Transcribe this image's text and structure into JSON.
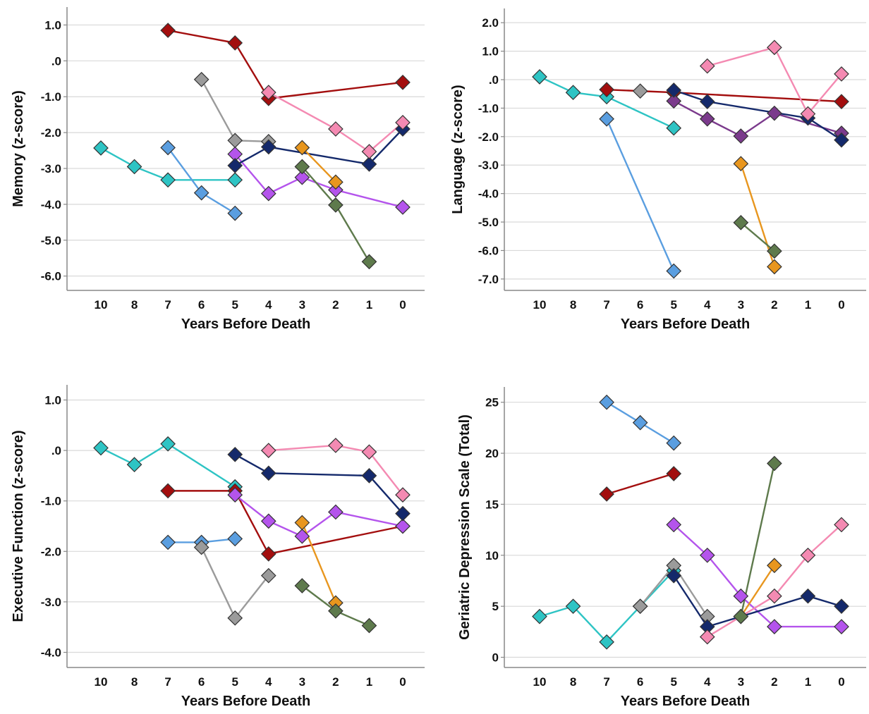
{
  "figure": {
    "background": "#ffffff",
    "gridline_color": "#d9d9d9",
    "axis_color": "#888888",
    "marker_edge": "#333333"
  },
  "chart_data": [
    {
      "type": "line",
      "xlabel": "Years Before Death",
      "ylabel": "Memory (z-score)",
      "categories": [
        "10",
        "8",
        "7",
        "6",
        "5",
        "4",
        "3",
        "2",
        "1",
        "0"
      ],
      "ylim": [
        -6.4,
        1.5
      ],
      "yticks": [
        1.0,
        0.0,
        -1.0,
        -2.0,
        -3.0,
        -4.0,
        -5.0,
        -6.0
      ],
      "ytick_labels": [
        "1.0",
        ".0",
        "-1.0",
        "-2.0",
        "-3.0",
        "-4.0",
        "-5.0",
        "-6.0"
      ],
      "grid": true,
      "series": [
        {
          "color": "#2ec4c4",
          "points": [
            [
              "10",
              -2.43
            ],
            [
              "8",
              -2.95
            ],
            [
              "7",
              -3.32
            ],
            [
              "5",
              -3.32
            ]
          ]
        },
        {
          "color": "#5a9ee0",
          "points": [
            [
              "7",
              -2.42
            ],
            [
              "6",
              -3.68
            ],
            [
              "5",
              -4.25
            ]
          ]
        },
        {
          "color": "#a30e0e",
          "points": [
            [
              "7",
              0.85
            ],
            [
              "5",
              0.5
            ],
            [
              "4",
              -1.05
            ],
            [
              "0",
              -0.6
            ]
          ]
        },
        {
          "color": "#9b9b9b",
          "points": [
            [
              "6",
              -0.52
            ],
            [
              "5",
              -2.22
            ],
            [
              "4",
              -2.25
            ]
          ]
        },
        {
          "color": "#b454ec",
          "points": [
            [
              "5",
              -2.6
            ],
            [
              "4",
              -3.7
            ],
            [
              "3",
              -3.25
            ],
            [
              "2",
              -3.6
            ],
            [
              "0",
              -4.08
            ]
          ]
        },
        {
          "color": "#14296b",
          "points": [
            [
              "5",
              -2.92
            ],
            [
              "4",
              -2.4
            ],
            [
              "1",
              -2.88
            ],
            [
              "0",
              -1.9
            ]
          ]
        },
        {
          "color": "#f48ab2",
          "points": [
            [
              "4",
              -0.88
            ],
            [
              "2",
              -1.9
            ],
            [
              "1",
              -2.53
            ],
            [
              "0",
              -1.72
            ]
          ]
        },
        {
          "color": "#e8961e",
          "points": [
            [
              "3",
              -2.42
            ],
            [
              "2",
              -3.38
            ]
          ]
        },
        {
          "color": "#5e7a4c",
          "points": [
            [
              "3",
              -2.95
            ],
            [
              "2",
              -4.02
            ],
            [
              "1",
              -5.6
            ]
          ]
        }
      ]
    },
    {
      "type": "line",
      "xlabel": "Years Before Death",
      "ylabel": "Language (z-score)",
      "categories": [
        "10",
        "8",
        "7",
        "6",
        "5",
        "4",
        "3",
        "2",
        "1",
        "0"
      ],
      "ylim": [
        -7.4,
        2.5
      ],
      "yticks": [
        2.0,
        1.0,
        0.0,
        -1.0,
        -2.0,
        -3.0,
        -4.0,
        -5.0,
        -6.0,
        -7.0
      ],
      "ytick_labels": [
        "2.0",
        "1.0",
        ".0",
        "-1.0",
        "-2.0",
        "-3.0",
        "-4.0",
        "-5.0",
        "-6.0",
        "-7.0"
      ],
      "grid": true,
      "series": [
        {
          "color": "#2ec4c4",
          "points": [
            [
              "10",
              0.1
            ],
            [
              "8",
              -0.45
            ],
            [
              "7",
              -0.6
            ],
            [
              "5",
              -1.7
            ]
          ]
        },
        {
          "color": "#5a9ee0",
          "points": [
            [
              "7",
              -1.38
            ],
            [
              "5",
              -6.72
            ]
          ]
        },
        {
          "color": "#a30e0e",
          "points": [
            [
              "7",
              -0.35
            ],
            [
              "5",
              -0.45
            ],
            [
              "0",
              -0.77
            ]
          ]
        },
        {
          "color": "#9b9b9b",
          "points": [
            [
              "6",
              -0.4
            ]
          ]
        },
        {
          "color": "#7b3a8c",
          "points": [
            [
              "5",
              -0.75
            ],
            [
              "4",
              -1.38
            ],
            [
              "3",
              -1.98
            ],
            [
              "2",
              -1.18
            ],
            [
              "0",
              -1.88
            ]
          ]
        },
        {
          "color": "#14296b",
          "points": [
            [
              "5",
              -0.37
            ],
            [
              "4",
              -0.77
            ],
            [
              "1",
              -1.35
            ],
            [
              "0",
              -2.12
            ]
          ]
        },
        {
          "color": "#f48ab2",
          "points": [
            [
              "4",
              0.48
            ],
            [
              "2",
              1.13
            ],
            [
              "1",
              -1.2
            ],
            [
              "0",
              0.2
            ]
          ]
        },
        {
          "color": "#e8961e",
          "points": [
            [
              "3",
              -2.95
            ],
            [
              "2",
              -6.57
            ]
          ]
        },
        {
          "color": "#5e7a4c",
          "points": [
            [
              "3",
              -5.02
            ],
            [
              "2",
              -6.02
            ]
          ]
        }
      ]
    },
    {
      "type": "line",
      "xlabel": "Years Before Death",
      "ylabel": "Executive Function (z-score)",
      "categories": [
        "10",
        "8",
        "7",
        "6",
        "5",
        "4",
        "3",
        "2",
        "1",
        "0"
      ],
      "ylim": [
        -4.3,
        1.3
      ],
      "yticks": [
        1.0,
        0.0,
        -1.0,
        -2.0,
        -3.0,
        -4.0
      ],
      "ytick_labels": [
        "1.0",
        ".0",
        "-1.0",
        "-2.0",
        "-3.0",
        "-4.0"
      ],
      "grid": true,
      "series": [
        {
          "color": "#2ec4c4",
          "points": [
            [
              "10",
              0.05
            ],
            [
              "8",
              -0.28
            ],
            [
              "7",
              0.13
            ],
            [
              "5",
              -0.72
            ]
          ]
        },
        {
          "color": "#5a9ee0",
          "points": [
            [
              "7",
              -1.82
            ],
            [
              "6",
              -1.82
            ],
            [
              "5",
              -1.75
            ]
          ]
        },
        {
          "color": "#a30e0e",
          "points": [
            [
              "7",
              -0.8
            ],
            [
              "5",
              -0.8
            ],
            [
              "4",
              -2.05
            ],
            [
              "0",
              -1.5
            ]
          ]
        },
        {
          "color": "#9b9b9b",
          "points": [
            [
              "6",
              -1.92
            ],
            [
              "5",
              -3.32
            ],
            [
              "4",
              -2.48
            ]
          ]
        },
        {
          "color": "#b454ec",
          "points": [
            [
              "5",
              -0.88
            ],
            [
              "4",
              -1.4
            ],
            [
              "3",
              -1.7
            ],
            [
              "2",
              -1.22
            ],
            [
              "0",
              -1.5
            ]
          ]
        },
        {
          "color": "#14296b",
          "points": [
            [
              "5",
              -0.08
            ],
            [
              "4",
              -0.45
            ],
            [
              "1",
              -0.5
            ],
            [
              "0",
              -1.25
            ]
          ]
        },
        {
          "color": "#f48ab2",
          "points": [
            [
              "4",
              0.0
            ],
            [
              "2",
              0.1
            ],
            [
              "1",
              -0.03
            ],
            [
              "0",
              -0.88
            ]
          ]
        },
        {
          "color": "#e8961e",
          "points": [
            [
              "3",
              -1.43
            ],
            [
              "2",
              -3.02
            ]
          ]
        },
        {
          "color": "#5e7a4c",
          "points": [
            [
              "3",
              -2.68
            ],
            [
              "2",
              -3.18
            ],
            [
              "1",
              -3.47
            ]
          ]
        }
      ]
    },
    {
      "type": "line",
      "xlabel": "Years Before Death",
      "ylabel": "Geriatric Depression Scale (Total)",
      "categories": [
        "10",
        "8",
        "7",
        "6",
        "5",
        "4",
        "3",
        "2",
        "1",
        "0"
      ],
      "ylim": [
        -1,
        26.5
      ],
      "yticks": [
        25,
        20,
        15,
        10,
        5,
        0
      ],
      "ytick_labels": [
        "25",
        "20",
        "15",
        "10",
        "5",
        "0"
      ],
      "grid": true,
      "series": [
        {
          "color": "#2ec4c4",
          "points": [
            [
              "10",
              4
            ],
            [
              "8",
              5
            ],
            [
              "7",
              1.5
            ],
            [
              "6",
              5
            ],
            [
              "5",
              8.5
            ]
          ]
        },
        {
          "color": "#5a9ee0",
          "points": [
            [
              "7",
              25
            ],
            [
              "6",
              23
            ],
            [
              "5",
              21
            ]
          ]
        },
        {
          "color": "#a30e0e",
          "points": [
            [
              "7",
              16
            ],
            [
              "5",
              18
            ]
          ]
        },
        {
          "color": "#9b9b9b",
          "points": [
            [
              "6",
              5
            ],
            [
              "5",
              9
            ],
            [
              "4",
              4
            ]
          ]
        },
        {
          "color": "#b454ec",
          "points": [
            [
              "5",
              13
            ],
            [
              "4",
              10
            ],
            [
              "3",
              6
            ],
            [
              "2",
              3
            ],
            [
              "0",
              3
            ]
          ]
        },
        {
          "color": "#14296b",
          "points": [
            [
              "5",
              8
            ],
            [
              "4",
              3
            ],
            [
              "1",
              6
            ],
            [
              "0",
              5
            ]
          ]
        },
        {
          "color": "#f48ab2",
          "points": [
            [
              "4",
              2
            ],
            [
              "2",
              6
            ],
            [
              "1",
              10
            ],
            [
              "0",
              13
            ]
          ]
        },
        {
          "color": "#e8961e",
          "points": [
            [
              "3",
              4
            ],
            [
              "2",
              9
            ]
          ]
        },
        {
          "color": "#5e7a4c",
          "points": [
            [
              "3",
              4
            ],
            [
              "2",
              19
            ]
          ]
        }
      ]
    }
  ]
}
